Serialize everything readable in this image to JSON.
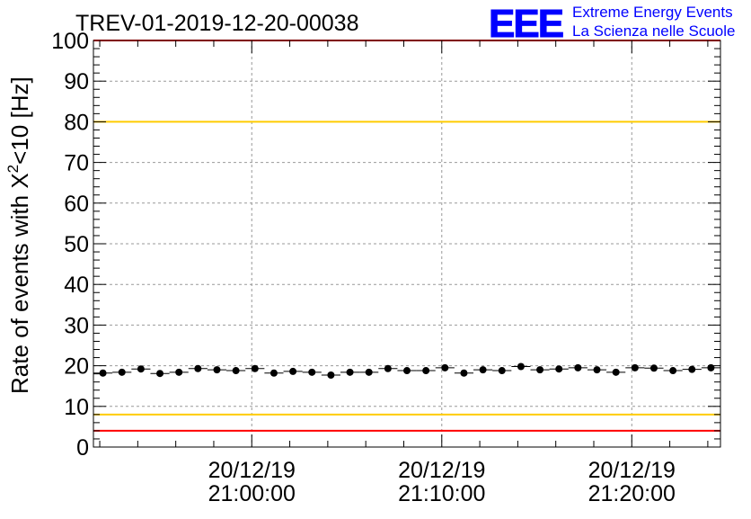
{
  "header": {
    "run_title": "TREV-01-2019-12-20-00038",
    "logo_letters": "EEE",
    "logo_line1": "Extreme Energy Events",
    "logo_line2": "La Scienza nelle Scuole"
  },
  "colors": {
    "red_limit": "#ff0000",
    "yellow_limit": "#ffcc00",
    "logo_blue": "#0000ff",
    "points": "#000000",
    "grid": "#999999"
  },
  "chart_data": {
    "type": "scatter",
    "title": "TREV-01-2019-12-20-00038",
    "ylabel_main": "Rate of events with X",
    "ylabel_sup": "2",
    "ylabel_tail": "<10 [Hz]",
    "xlabel": "",
    "ylim": [
      0,
      100
    ],
    "y_ticks": [
      0,
      10,
      20,
      30,
      40,
      50,
      60,
      70,
      80,
      90,
      100
    ],
    "y_tick_labels": [
      "0",
      "10",
      "20",
      "30",
      "40",
      "50",
      "60",
      "70",
      "80",
      "90",
      "100"
    ],
    "xlim": [
      "20/12/19 20:51:40",
      "20/12/19 21:24:40"
    ],
    "x_ticks": [
      {
        "value": "20/12/19 21:00:00",
        "date": "20/12/19",
        "time": "21:00:00"
      },
      {
        "value": "20/12/19 21:10:00",
        "date": "20/12/19",
        "time": "21:10:00"
      },
      {
        "value": "20/12/19 21:20:00",
        "date": "20/12/19",
        "time": "21:20:00"
      }
    ],
    "grid": true,
    "reference_lines": [
      {
        "y": 100,
        "color": "#ff0000"
      },
      {
        "y": 80,
        "color": "#ffcc00"
      },
      {
        "y": 8,
        "color": "#ffcc00"
      },
      {
        "y": 4,
        "color": "#ff0000"
      }
    ],
    "series": [
      {
        "x": [
          "20/12/19 20:52:10",
          "20/12/19 20:53:10",
          "20/12/19 20:54:10",
          "20/12/19 20:55:10",
          "20/12/19 20:56:10",
          "20/12/19 20:57:10",
          "20/12/19 20:58:10",
          "20/12/19 20:59:10",
          "20/12/19 21:00:10",
          "20/12/19 21:01:10",
          "20/12/19 21:02:10",
          "20/12/19 21:03:10",
          "20/12/19 21:04:10",
          "20/12/19 21:05:10",
          "20/12/19 21:06:10",
          "20/12/19 21:07:10",
          "20/12/19 21:08:10",
          "20/12/19 21:09:10",
          "20/12/19 21:10:10",
          "20/12/19 21:11:10",
          "20/12/19 21:12:10",
          "20/12/19 21:13:10",
          "20/12/19 21:14:10",
          "20/12/19 21:15:10",
          "20/12/19 21:16:10",
          "20/12/19 21:17:10",
          "20/12/19 21:18:10",
          "20/12/19 21:19:10",
          "20/12/19 21:20:10",
          "20/12/19 21:21:10",
          "20/12/19 21:22:10",
          "20/12/19 21:23:10",
          "20/12/19 21:24:10"
        ],
        "y": [
          18.2,
          18.4,
          19.2,
          18.1,
          18.4,
          19.3,
          19.0,
          18.8,
          19.3,
          18.2,
          18.6,
          18.4,
          17.7,
          18.4,
          18.4,
          19.3,
          18.8,
          18.8,
          19.5,
          18.2,
          19.0,
          18.8,
          19.8,
          19.0,
          19.2,
          19.5,
          19.0,
          18.4,
          19.5,
          19.4,
          18.8,
          19.1,
          19.5
        ],
        "yerr": 0.6
      }
    ]
  }
}
